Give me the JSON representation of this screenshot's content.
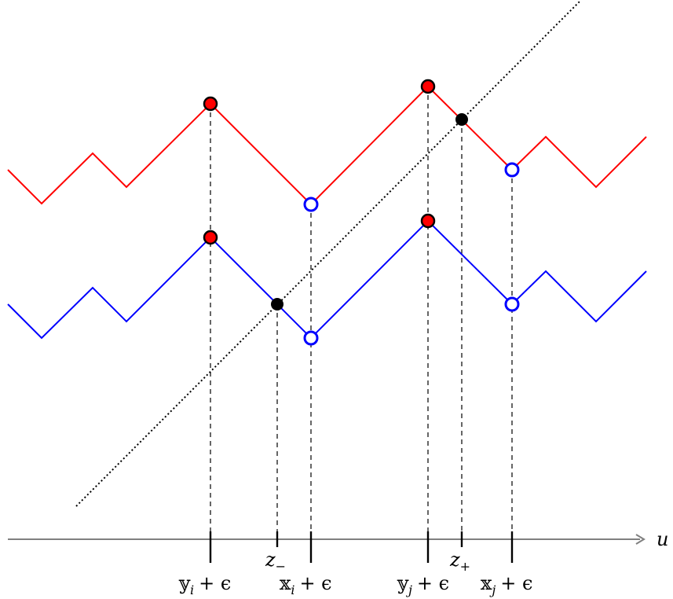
{
  "diagram": {
    "axis_label": "u",
    "tick_labels": [
      {
        "id": "yi",
        "base": "𝕪",
        "sub": "i",
        "plus": "+ ϵ"
      },
      {
        "id": "zminus",
        "base": "z",
        "sub": "−"
      },
      {
        "id": "xi",
        "base": "𝕩",
        "sub": "i",
        "plus": "+ ϵ"
      },
      {
        "id": "yj",
        "base": "𝕪",
        "sub": "j",
        "plus": "+ ϵ"
      },
      {
        "id": "zplus",
        "base": "z",
        "sub": "+"
      },
      {
        "id": "xj",
        "base": "𝕩",
        "sub": "j",
        "plus": "+ ϵ"
      }
    ],
    "colors": {
      "upper_path": "#ff0000",
      "lower_path": "#0000ff",
      "filled_marker": "#ff0000",
      "open_marker": "#0000ff",
      "intersection_marker": "#000000",
      "axis": "#808080",
      "guide": "#000000"
    }
  }
}
